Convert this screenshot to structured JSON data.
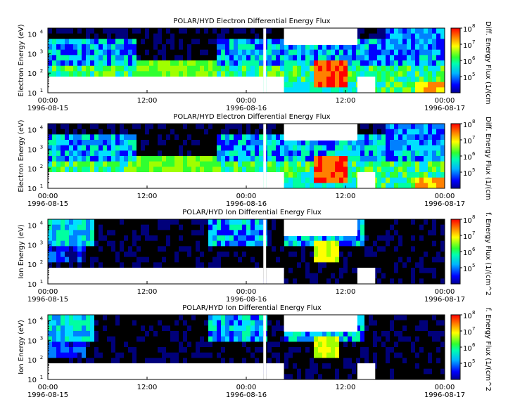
{
  "chart_data": [
    {
      "type": "heatmap",
      "title": "POLAR/HYD  Electron Differential Energy Flux",
      "ylabel": "Electron Energy (eV)",
      "yscale": "log",
      "ylim": [
        10,
        20000
      ],
      "y_ticks": [
        "10",
        "10",
        "10",
        "10"
      ],
      "y_tick_exps": [
        "1",
        "2",
        "3",
        "4"
      ],
      "x_ticks": [
        {
          "time": "00:00",
          "date": "1996-08-15"
        },
        {
          "time": "12:00",
          "date": ""
        },
        {
          "time": "00:00",
          "date": "1996-08-16"
        },
        {
          "time": "12:00",
          "date": ""
        },
        {
          "time": "00:00",
          "date": "1996-08-17"
        }
      ],
      "colorbar": {
        "label": "Diff. Energy Flux (1/(cm",
        "ticks": [
          "10",
          "10",
          "10",
          "10"
        ],
        "tick_exps": [
          "5",
          "6",
          "7",
          "8"
        ],
        "scale": "log",
        "range": [
          10000,
          100000000
        ]
      },
      "grid": false
    },
    {
      "type": "heatmap",
      "title": "POLAR/HYD  Electron Differential Energy Flux",
      "ylabel": "Electron Energy (eV)",
      "yscale": "log",
      "ylim": [
        10,
        20000
      ],
      "y_ticks": [
        "10",
        "10",
        "10",
        "10"
      ],
      "y_tick_exps": [
        "1",
        "2",
        "3",
        "4"
      ],
      "x_ticks": [
        {
          "time": "00:00",
          "date": "1996-08-15"
        },
        {
          "time": "12:00",
          "date": ""
        },
        {
          "time": "00:00",
          "date": "1996-08-16"
        },
        {
          "time": "12:00",
          "date": ""
        },
        {
          "time": "00:00",
          "date": "1996-08-17"
        }
      ],
      "colorbar": {
        "label": "Diff. Energy Flux (1/(cm",
        "ticks": [
          "10",
          "10",
          "10",
          "10"
        ],
        "tick_exps": [
          "5",
          "6",
          "7",
          "8"
        ],
        "scale": "log",
        "range": [
          10000,
          100000000
        ]
      },
      "grid": false
    },
    {
      "type": "heatmap",
      "title": "POLAR/HYD  Ion Differential Energy Flux",
      "ylabel": "Ion Energy (eV)",
      "yscale": "log",
      "ylim": [
        10,
        20000
      ],
      "y_ticks": [
        "10",
        "10",
        "10",
        "10"
      ],
      "y_tick_exps": [
        "1",
        "2",
        "3",
        "4"
      ],
      "x_ticks": [
        {
          "time": "00:00",
          "date": "1996-08-15"
        },
        {
          "time": "12:00",
          "date": ""
        },
        {
          "time": "00:00",
          "date": "1996-08-16"
        },
        {
          "time": "12:00",
          "date": ""
        },
        {
          "time": "00:00",
          "date": "1996-08-17"
        }
      ],
      "colorbar": {
        "label": "f. Energy Flux (1/(cm^2",
        "ticks": [
          "10",
          "10",
          "10",
          "10"
        ],
        "tick_exps": [
          "5",
          "6",
          "7",
          "8"
        ],
        "scale": "log",
        "range": [
          10000,
          100000000
        ]
      },
      "grid": false
    },
    {
      "type": "heatmap",
      "title": "POLAR/HYD  Ion Differential Energy Flux",
      "ylabel": "Ion Energy (eV)",
      "yscale": "log",
      "ylim": [
        10,
        20000
      ],
      "y_ticks": [
        "10",
        "10",
        "10",
        "10"
      ],
      "y_tick_exps": [
        "1",
        "2",
        "3",
        "4"
      ],
      "x_ticks": [
        {
          "time": "00:00",
          "date": "1996-08-15"
        },
        {
          "time": "12:00",
          "date": ""
        },
        {
          "time": "00:00",
          "date": "1996-08-16"
        },
        {
          "time": "12:00",
          "date": ""
        },
        {
          "time": "00:00",
          "date": "1996-08-17"
        }
      ],
      "colorbar": {
        "label": "f. Energy Flux (1/(cm^2",
        "ticks": [
          "10",
          "10",
          "10",
          "10"
        ],
        "tick_exps": [
          "5",
          "6",
          "7",
          "8"
        ],
        "scale": "log",
        "range": [
          10000,
          100000000
        ]
      },
      "grid": false
    }
  ]
}
